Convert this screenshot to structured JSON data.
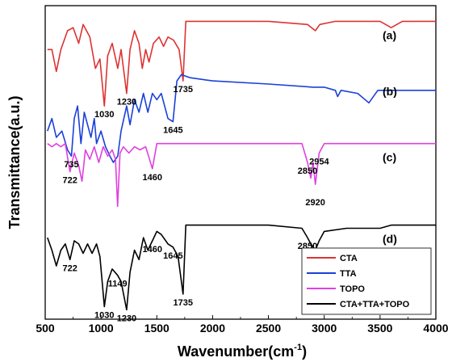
{
  "chart_data": {
    "type": "line",
    "xlabel": "Wavenumber(cm",
    "xlabel_sup": "-1",
    "xlabel_suffix": ")",
    "ylabel": "Transmittance(a.u.)",
    "xlim": [
      500,
      4000
    ],
    "x_ticks": [
      "500",
      "1000",
      "1500",
      "2000",
      "2500",
      "3000",
      "3500",
      "4000"
    ],
    "legend_position": "bottom-right",
    "series": [
      {
        "name": "CTA",
        "tag": "(a)",
        "color": "#dd3333",
        "baseline": 0.95,
        "points": [
          [
            520,
            0.86
          ],
          [
            560,
            0.86
          ],
          [
            600,
            0.79
          ],
          [
            640,
            0.86
          ],
          [
            700,
            0.92
          ],
          [
            750,
            0.93
          ],
          [
            800,
            0.88
          ],
          [
            840,
            0.94
          ],
          [
            900,
            0.9
          ],
          [
            950,
            0.8
          ],
          [
            990,
            0.83
          ],
          [
            1030,
            0.68
          ],
          [
            1060,
            0.84
          ],
          [
            1100,
            0.88
          ],
          [
            1150,
            0.8
          ],
          [
            1180,
            0.86
          ],
          [
            1230,
            0.72
          ],
          [
            1260,
            0.86
          ],
          [
            1300,
            0.92
          ],
          [
            1340,
            0.88
          ],
          [
            1370,
            0.8
          ],
          [
            1400,
            0.86
          ],
          [
            1430,
            0.82
          ],
          [
            1470,
            0.88
          ],
          [
            1520,
            0.9
          ],
          [
            1560,
            0.87
          ],
          [
            1600,
            0.9
          ],
          [
            1650,
            0.89
          ],
          [
            1700,
            0.86
          ],
          [
            1735,
            0.76
          ],
          [
            1760,
            0.95
          ],
          [
            1850,
            0.95
          ],
          [
            2000,
            0.95
          ],
          [
            2500,
            0.95
          ],
          [
            2850,
            0.94
          ],
          [
            2920,
            0.92
          ],
          [
            2960,
            0.94
          ],
          [
            3100,
            0.95
          ],
          [
            3500,
            0.95
          ],
          [
            3600,
            0.93
          ],
          [
            3700,
            0.95
          ],
          [
            4000,
            0.95
          ]
        ]
      },
      {
        "name": "TTA",
        "tag": "(b)",
        "color": "#1a40d9",
        "baseline": 0.77,
        "points": [
          [
            520,
            0.6
          ],
          [
            560,
            0.64
          ],
          [
            600,
            0.58
          ],
          [
            650,
            0.6
          ],
          [
            700,
            0.54
          ],
          [
            735,
            0.52
          ],
          [
            760,
            0.64
          ],
          [
            790,
            0.68
          ],
          [
            820,
            0.56
          ],
          [
            850,
            0.66
          ],
          [
            880,
            0.62
          ],
          [
            910,
            0.58
          ],
          [
            940,
            0.64
          ],
          [
            960,
            0.56
          ],
          [
            1000,
            0.6
          ],
          [
            1040,
            0.55
          ],
          [
            1080,
            0.52
          ],
          [
            1110,
            0.5
          ],
          [
            1150,
            0.52
          ],
          [
            1180,
            0.6
          ],
          [
            1230,
            0.68
          ],
          [
            1260,
            0.62
          ],
          [
            1300,
            0.7
          ],
          [
            1340,
            0.66
          ],
          [
            1380,
            0.72
          ],
          [
            1420,
            0.66
          ],
          [
            1460,
            0.72
          ],
          [
            1500,
            0.7
          ],
          [
            1540,
            0.72
          ],
          [
            1600,
            0.64
          ],
          [
            1645,
            0.63
          ],
          [
            1680,
            0.76
          ],
          [
            1720,
            0.78
          ],
          [
            1800,
            0.77
          ],
          [
            2000,
            0.76
          ],
          [
            2500,
            0.75
          ],
          [
            2900,
            0.74
          ],
          [
            3000,
            0.74
          ],
          [
            3100,
            0.73
          ],
          [
            3120,
            0.71
          ],
          [
            3150,
            0.73
          ],
          [
            3300,
            0.72
          ],
          [
            3400,
            0.69
          ],
          [
            3480,
            0.73
          ],
          [
            3600,
            0.73
          ],
          [
            4000,
            0.73
          ]
        ]
      },
      {
        "name": "TOPO",
        "tag": "(c)",
        "color": "#e040e0",
        "baseline": 0.56,
        "points": [
          [
            520,
            0.56
          ],
          [
            560,
            0.55
          ],
          [
            600,
            0.56
          ],
          [
            640,
            0.55
          ],
          [
            680,
            0.56
          ],
          [
            722,
            0.47
          ],
          [
            760,
            0.53
          ],
          [
            800,
            0.49
          ],
          [
            830,
            0.44
          ],
          [
            860,
            0.54
          ],
          [
            900,
            0.51
          ],
          [
            940,
            0.55
          ],
          [
            980,
            0.5
          ],
          [
            1020,
            0.55
          ],
          [
            1060,
            0.52
          ],
          [
            1100,
            0.54
          ],
          [
            1130,
            0.51
          ],
          [
            1149,
            0.36
          ],
          [
            1170,
            0.53
          ],
          [
            1200,
            0.55
          ],
          [
            1250,
            0.53
          ],
          [
            1300,
            0.55
          ],
          [
            1350,
            0.54
          ],
          [
            1400,
            0.55
          ],
          [
            1460,
            0.48
          ],
          [
            1500,
            0.56
          ],
          [
            1800,
            0.56
          ],
          [
            2500,
            0.56
          ],
          [
            2800,
            0.56
          ],
          [
            2850,
            0.5
          ],
          [
            2880,
            0.45
          ],
          [
            2900,
            0.5
          ],
          [
            2920,
            0.43
          ],
          [
            2954,
            0.53
          ],
          [
            3000,
            0.56
          ],
          [
            4000,
            0.56
          ]
        ]
      },
      {
        "name": "CTA+TTA+TOPO",
        "tag": "(d)",
        "color": "#000000",
        "baseline": 0.3,
        "points": [
          [
            520,
            0.26
          ],
          [
            560,
            0.22
          ],
          [
            600,
            0.17
          ],
          [
            640,
            0.22
          ],
          [
            680,
            0.24
          ],
          [
            722,
            0.19
          ],
          [
            760,
            0.25
          ],
          [
            800,
            0.24
          ],
          [
            840,
            0.21
          ],
          [
            880,
            0.24
          ],
          [
            920,
            0.21
          ],
          [
            960,
            0.24
          ],
          [
            990,
            0.2
          ],
          [
            1030,
            0.04
          ],
          [
            1060,
            0.12
          ],
          [
            1100,
            0.16
          ],
          [
            1149,
            0.14
          ],
          [
            1180,
            0.12
          ],
          [
            1230,
            0.03
          ],
          [
            1260,
            0.15
          ],
          [
            1300,
            0.22
          ],
          [
            1340,
            0.19
          ],
          [
            1380,
            0.26
          ],
          [
            1420,
            0.22
          ],
          [
            1460,
            0.25
          ],
          [
            1500,
            0.28
          ],
          [
            1540,
            0.27
          ],
          [
            1600,
            0.24
          ],
          [
            1645,
            0.23
          ],
          [
            1690,
            0.2
          ],
          [
            1735,
            0.08
          ],
          [
            1760,
            0.3
          ],
          [
            1850,
            0.3
          ],
          [
            2000,
            0.3
          ],
          [
            2500,
            0.3
          ],
          [
            2800,
            0.29
          ],
          [
            2850,
            0.26
          ],
          [
            2880,
            0.24
          ],
          [
            2920,
            0.22
          ],
          [
            2954,
            0.25
          ],
          [
            3000,
            0.28
          ],
          [
            3200,
            0.29
          ],
          [
            3500,
            0.29
          ],
          [
            3600,
            0.3
          ],
          [
            4000,
            0.3
          ]
        ]
      }
    ],
    "annotations": [
      {
        "text": "1030",
        "series": 0,
        "x": 1030
      },
      {
        "text": "1230",
        "series": 0,
        "x": 1230
      },
      {
        "text": "1735",
        "series": 0,
        "x": 1735
      },
      {
        "text": "735",
        "series": 1,
        "x": 735
      },
      {
        "text": "1645",
        "series": 1,
        "x": 1645
      },
      {
        "text": "722",
        "series": 2,
        "x": 722
      },
      {
        "text": "1460",
        "series": 2,
        "x": 1460
      },
      {
        "text": "2850",
        "series": 2,
        "x": 2850
      },
      {
        "text": "2954",
        "series": 2,
        "x": 2954
      },
      {
        "text": "2920",
        "series": 2,
        "x": 2920
      },
      {
        "text": "1149",
        "series": 3,
        "x": 1149
      },
      {
        "text": "722",
        "series": 3,
        "x": 722
      },
      {
        "text": "1460",
        "series": 3,
        "x": 1460
      },
      {
        "text": "1645",
        "series": 3,
        "x": 1645
      },
      {
        "text": "2850",
        "series": 3,
        "x": 2850
      },
      {
        "text": "2920",
        "series": 3,
        "x": 2920
      },
      {
        "text": "2954",
        "series": 3,
        "x": 2954
      },
      {
        "text": "1030",
        "series": 3,
        "x": 1030
      },
      {
        "text": "1230",
        "series": 3,
        "x": 1230
      },
      {
        "text": "1735",
        "series": 3,
        "x": 1735
      }
    ]
  }
}
